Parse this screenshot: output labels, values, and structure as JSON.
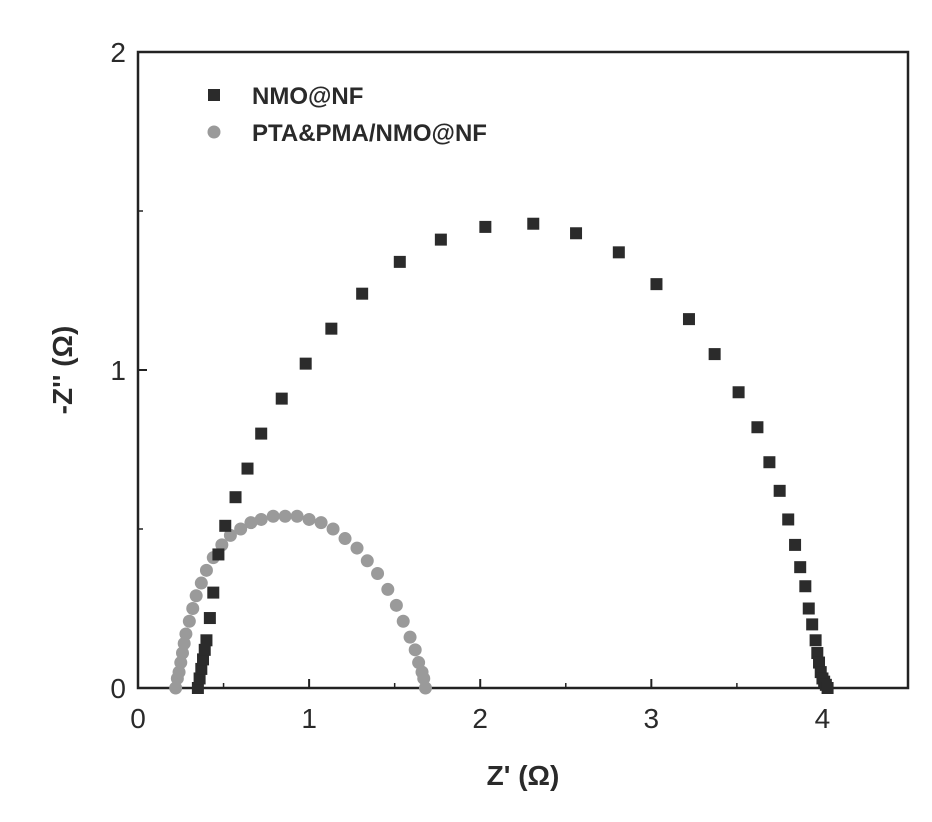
{
  "chart_data": {
    "type": "scatter",
    "xlabel": "Z' (Ω)",
    "ylabel": "-Z'' (Ω)",
    "xlim": [
      0,
      4.5
    ],
    "ylim": [
      0,
      2
    ],
    "xticks": [
      0,
      1,
      2,
      3,
      4
    ],
    "yticks": [
      0,
      1,
      2
    ],
    "grid": false,
    "legend_position": "top-left",
    "series": [
      {
        "name": "NMO@NF",
        "color": "#2b2b2b",
        "marker": "square",
        "x": [
          0.35,
          0.36,
          0.37,
          0.38,
          0.39,
          0.4,
          0.42,
          0.44,
          0.47,
          0.51,
          0.57,
          0.64,
          0.72,
          0.84,
          0.98,
          1.13,
          1.31,
          1.53,
          1.77,
          2.03,
          2.31,
          2.56,
          2.81,
          3.03,
          3.22,
          3.37,
          3.51,
          3.62,
          3.69,
          3.75,
          3.8,
          3.84,
          3.87,
          3.9,
          3.92,
          3.94,
          3.96,
          3.97,
          3.98,
          3.99,
          4.0,
          4.01,
          4.02,
          4.03
        ],
        "y": [
          0.0,
          0.03,
          0.06,
          0.09,
          0.12,
          0.15,
          0.22,
          0.3,
          0.42,
          0.51,
          0.6,
          0.69,
          0.8,
          0.91,
          1.02,
          1.13,
          1.24,
          1.34,
          1.41,
          1.45,
          1.46,
          1.43,
          1.37,
          1.27,
          1.16,
          1.05,
          0.93,
          0.82,
          0.71,
          0.62,
          0.53,
          0.45,
          0.38,
          0.32,
          0.25,
          0.2,
          0.15,
          0.11,
          0.08,
          0.05,
          0.03,
          0.02,
          0.01,
          0.0
        ]
      },
      {
        "name": "PTA&PMA/NMO@NF",
        "color": "#9a9a9a",
        "marker": "circle",
        "x": [
          0.22,
          0.23,
          0.24,
          0.25,
          0.26,
          0.27,
          0.28,
          0.3,
          0.32,
          0.34,
          0.37,
          0.4,
          0.44,
          0.49,
          0.54,
          0.6,
          0.66,
          0.72,
          0.79,
          0.86,
          0.93,
          1.0,
          1.07,
          1.14,
          1.21,
          1.28,
          1.34,
          1.4,
          1.46,
          1.51,
          1.55,
          1.59,
          1.62,
          1.64,
          1.66,
          1.67,
          1.68
        ],
        "y": [
          0.0,
          0.03,
          0.05,
          0.08,
          0.11,
          0.14,
          0.17,
          0.21,
          0.25,
          0.29,
          0.33,
          0.37,
          0.41,
          0.45,
          0.48,
          0.5,
          0.52,
          0.53,
          0.54,
          0.54,
          0.54,
          0.53,
          0.52,
          0.5,
          0.47,
          0.44,
          0.4,
          0.36,
          0.31,
          0.26,
          0.21,
          0.16,
          0.12,
          0.08,
          0.05,
          0.03,
          0.0
        ]
      }
    ]
  }
}
